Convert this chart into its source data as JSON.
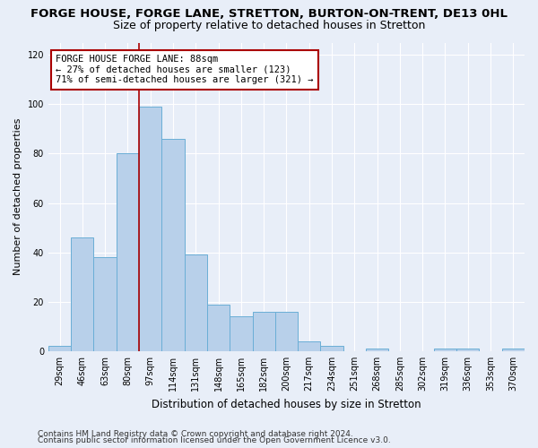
{
  "title_line1": "FORGE HOUSE, FORGE LANE, STRETTON, BURTON-ON-TRENT, DE13 0HL",
  "title_line2": "Size of property relative to detached houses in Stretton",
  "xlabel": "Distribution of detached houses by size in Stretton",
  "ylabel": "Number of detached properties",
  "categories": [
    "29sqm",
    "46sqm",
    "63sqm",
    "80sqm",
    "97sqm",
    "114sqm",
    "131sqm",
    "148sqm",
    "165sqm",
    "182sqm",
    "200sqm",
    "217sqm",
    "234sqm",
    "251sqm",
    "268sqm",
    "285sqm",
    "302sqm",
    "319sqm",
    "336sqm",
    "353sqm",
    "370sqm"
  ],
  "values": [
    2,
    46,
    38,
    80,
    99,
    86,
    39,
    19,
    14,
    16,
    16,
    4,
    2,
    0,
    1,
    0,
    0,
    1,
    1,
    0,
    1
  ],
  "bar_color": "#b8d0ea",
  "bar_edge_color": "#6aaed6",
  "vline_index": 4,
  "vline_color": "#aa0000",
  "annotation_text": "FORGE HOUSE FORGE LANE: 88sqm\n← 27% of detached houses are smaller (123)\n71% of semi-detached houses are larger (321) →",
  "annotation_box_facecolor": "#ffffff",
  "annotation_box_edgecolor": "#aa0000",
  "ylim": [
    0,
    125
  ],
  "yticks": [
    0,
    20,
    40,
    60,
    80,
    100,
    120
  ],
  "background_color": "#e8eef8",
  "grid_color": "#ffffff",
  "footer_line1": "Contains HM Land Registry data © Crown copyright and database right 2024.",
  "footer_line2": "Contains public sector information licensed under the Open Government Licence v3.0.",
  "title_fontsize": 9.5,
  "subtitle_fontsize": 9,
  "xlabel_fontsize": 8.5,
  "ylabel_fontsize": 8,
  "tick_fontsize": 7,
  "annotation_fontsize": 7.5,
  "footer_fontsize": 6.5
}
